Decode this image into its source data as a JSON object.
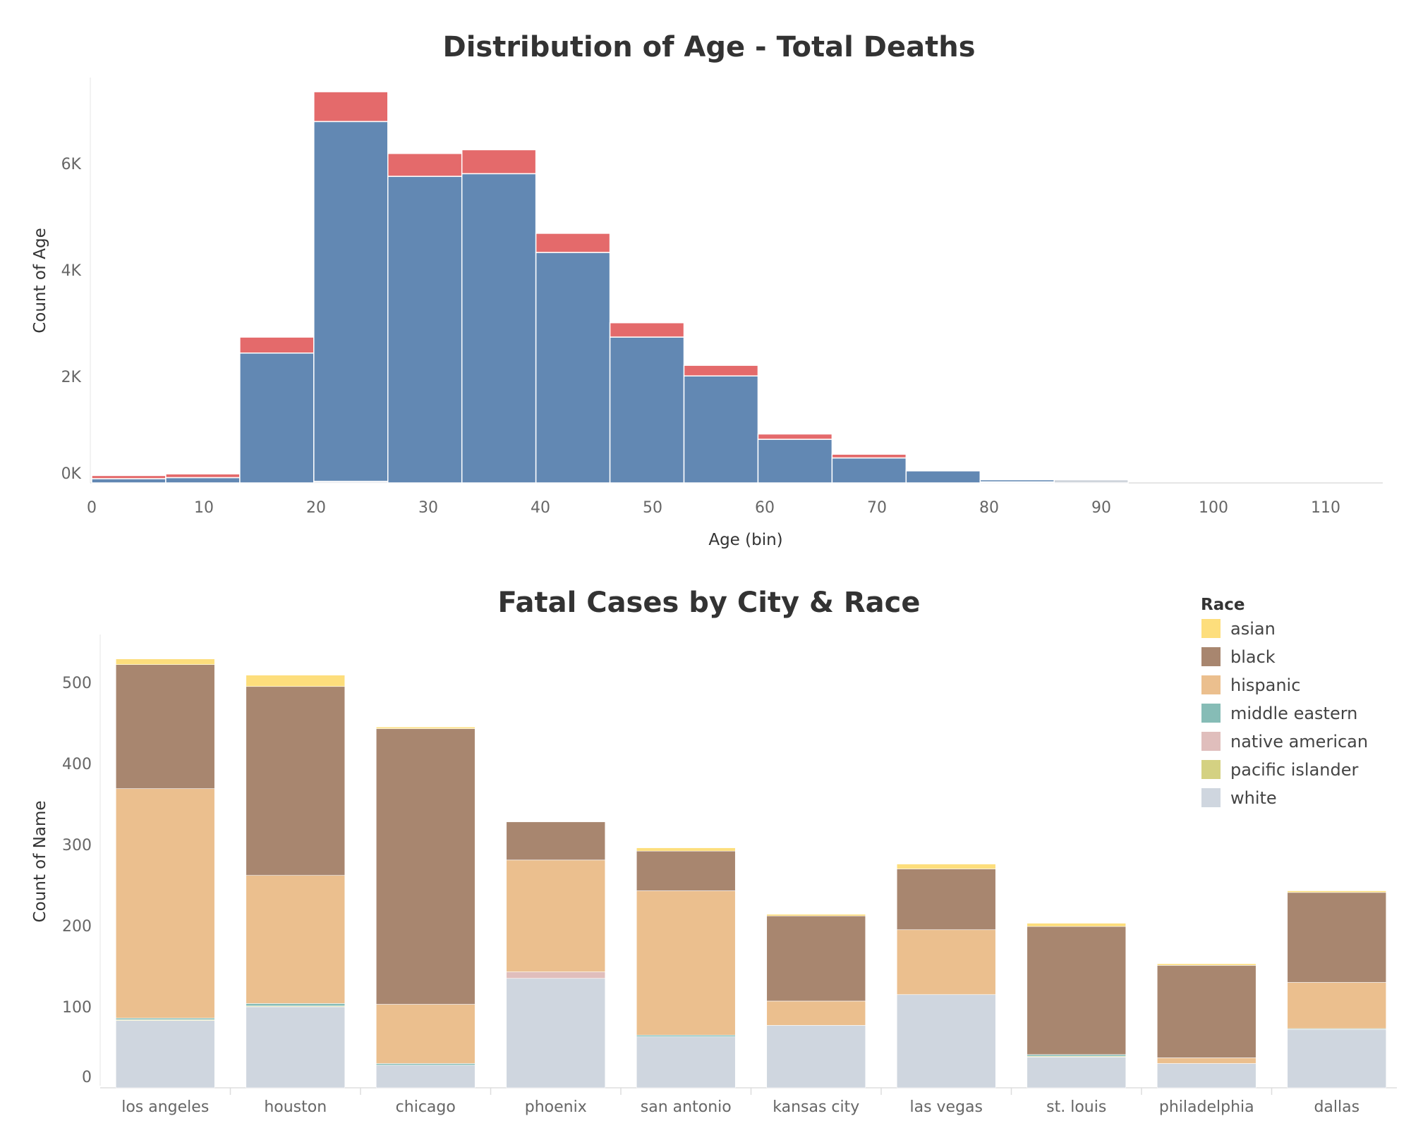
{
  "chart_data": [
    {
      "type": "bar",
      "subtype": "stacked-histogram",
      "title": "Distribution of Age - Total Deaths",
      "xlabel": "Age (bin)",
      "ylabel": "Count of Age",
      "x_tick_labels": [
        "0",
        "10",
        "20",
        "30",
        "40",
        "50",
        "60",
        "70",
        "80",
        "90",
        "100",
        "110"
      ],
      "y_tick_labels": [
        "0K",
        "2K",
        "4K",
        "6K"
      ],
      "y_ticks": [
        0,
        2000,
        4000,
        6000
      ],
      "ylim": [
        0,
        7600
      ],
      "x_per_tick": 10,
      "bin_width": 6.6,
      "bin_starts": [
        0,
        6.6,
        13.2,
        19.8,
        26.4,
        33.0,
        39.6,
        46.2,
        52.8,
        59.4,
        66.0,
        72.6,
        79.2,
        85.8
      ],
      "colors": {
        "blue": "#6288b3",
        "red": "#e46a6b",
        "grey": "#cfd5dc"
      },
      "series": [
        {
          "color": "grey",
          "values": [
            0,
            0,
            0,
            30,
            0,
            0,
            0,
            0,
            0,
            0,
            0,
            0,
            20,
            60
          ]
        },
        {
          "color": "blue",
          "values": [
            80,
            100,
            2440,
            6760,
            5760,
            5810,
            4330,
            2740,
            2010,
            820,
            470,
            230,
            40,
            0
          ]
        },
        {
          "color": "red",
          "values": [
            60,
            70,
            300,
            560,
            430,
            450,
            360,
            270,
            200,
            100,
            70,
            10,
            0,
            0
          ]
        }
      ]
    },
    {
      "type": "bar",
      "subtype": "stacked",
      "title": "Fatal Cases by City & Race",
      "xlabel": "",
      "ylabel": "Count of Name",
      "ylim": [
        0,
        560
      ],
      "y_ticks": [
        0,
        100,
        200,
        300,
        400,
        500
      ],
      "categories": [
        "los angeles",
        "houston",
        "chicago",
        "phoenix",
        "san antonio",
        "kansas city",
        "las vegas",
        "st. louis",
        "philadelphia",
        "dallas"
      ],
      "legend_title": "Race",
      "legend_position": "top-right",
      "series": [
        {
          "name": "white",
          "color": "#cfd6df",
          "values": [
            83,
            100,
            28,
            135,
            63,
            77,
            115,
            38,
            30,
            72
          ]
        },
        {
          "name": "pacific islander",
          "color": "#d4d182",
          "values": [
            1,
            1,
            0,
            0,
            0,
            0,
            0,
            1,
            0,
            0
          ]
        },
        {
          "name": "native american",
          "color": "#e0bebc",
          "values": [
            0,
            0,
            0,
            8,
            0,
            0,
            0,
            0,
            0,
            0
          ]
        },
        {
          "name": "middle eastern",
          "color": "#86bcb6",
          "values": [
            2,
            3,
            2,
            0,
            2,
            0,
            0,
            2,
            0,
            1
          ]
        },
        {
          "name": "hispanic",
          "color": "#ebbf8e",
          "values": [
            283,
            158,
            73,
            138,
            178,
            30,
            80,
            0,
            7,
            57
          ]
        },
        {
          "name": "black",
          "color": "#a8866f",
          "values": [
            153,
            233,
            340,
            47,
            49,
            105,
            75,
            158,
            114,
            111
          ]
        },
        {
          "name": "asian",
          "color": "#fdde7c",
          "values": [
            7,
            14,
            2,
            0,
            4,
            2,
            6,
            4,
            2,
            2
          ]
        }
      ],
      "legend_order": [
        "asian",
        "black",
        "hispanic",
        "middle eastern",
        "native american",
        "pacific islander",
        "white"
      ]
    }
  ]
}
